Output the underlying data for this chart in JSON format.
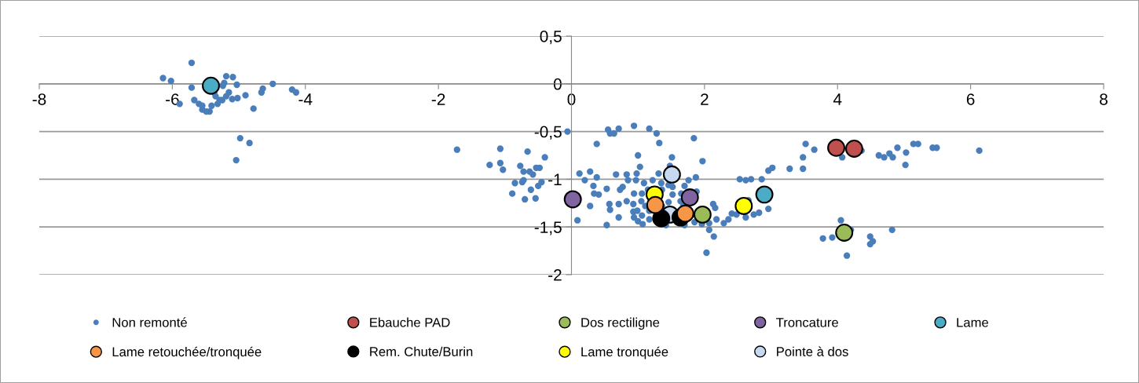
{
  "chart_data": {
    "type": "scatter",
    "xlim": [
      -8,
      8
    ],
    "ylim": [
      -2,
      0.5
    ],
    "xticks": [
      -8,
      -6,
      -4,
      -2,
      0,
      2,
      4,
      6,
      8
    ],
    "yticks": [
      {
        "value": 0.5,
        "label": "0,5"
      },
      {
        "value": 0,
        "label": "0"
      },
      {
        "value": -0.5,
        "label": "-0,5"
      },
      {
        "value": -1,
        "label": "-1"
      },
      {
        "value": -1.5,
        "label": "-1,5"
      },
      {
        "value": -2,
        "label": "-2"
      }
    ],
    "grid": "y",
    "legend": "bottom",
    "marker": "circle",
    "series": [
      {
        "name": "Non remonté",
        "color": "#4a7ebb",
        "x": [
          -6.14,
          -6.02,
          -5.71,
          -5.71,
          -5.89,
          -5.67,
          -5.6,
          -5.55,
          -5.55,
          -5.49,
          -5.44,
          -5.41,
          -5.32,
          -5.29,
          -5.25,
          -5.19,
          -5.15,
          -5.1,
          -5.02,
          -5.35,
          -5.37,
          -5.24,
          -5.22,
          -5.19,
          -5.09,
          -5.03,
          -4.9,
          -4.78,
          -4.66,
          -4.64,
          -4.49,
          -4.2,
          -4.14,
          -4.98,
          -4.84,
          -5.04,
          -0.06,
          -1.72,
          -1.07,
          -1.23,
          -1.07,
          -1.03,
          -0.66,
          -0.4,
          -0.77,
          -0.72,
          -0.63,
          -0.58,
          -0.53,
          -0.48,
          -0.72,
          -0.85,
          -0.74,
          -0.45,
          -0.5,
          -0.61,
          -0.89,
          -0.7,
          -0.54,
          0.09,
          0.12,
          0.28,
          0.2,
          0.33,
          0.28,
          0.34,
          0.55,
          0.58,
          0.64,
          0.71,
          0.94,
          1.17,
          1.28,
          1.32,
          1.84,
          0.38,
          1.0,
          1.51,
          1.97,
          1.03,
          0.38,
          0.67,
          0.83,
          0.98,
          1.31,
          1.48,
          1.87,
          1.76,
          0.85,
          0.97,
          1.09,
          1.22,
          1.35,
          1.46,
          1.52,
          1.7,
          0.53,
          0.77,
          0.73,
          0.41,
          0.94,
          1.06,
          1.15,
          1.36,
          1.52,
          1.65,
          1.88,
          1.64,
          0.83,
          0.93,
          1.05,
          1.11,
          1.36,
          1.46,
          1.68,
          0.57,
          0.58,
          0.71,
          0.93,
          0.99,
          1.17,
          1.53,
          2.13,
          2.16,
          0.71,
          0.94,
          1.06,
          1.0,
          1.07,
          1.17,
          1.42,
          1.7,
          1.85,
          1.96,
          2.07,
          2.07,
          0.53,
          2.14,
          2.03,
          2.18,
          2.29,
          2.36,
          2.41,
          2.48,
          2.62,
          2.74,
          2.82,
          2.66,
          2.96,
          2.53,
          2.62,
          2.7,
          2.86,
          2.96,
          3.02,
          3.52,
          3.65,
          3.48,
          3.48,
          3.28,
          4.07,
          4.05,
          3.78,
          3.92,
          4.2,
          4.14,
          4.49,
          4.53,
          4.49,
          4.82,
          4.36,
          4.62,
          4.7,
          4.78,
          4.83,
          4.9,
          5.03,
          5.02,
          5.14,
          5.21,
          5.43,
          5.49,
          6.13
        ],
        "values": [
          0.06,
          0.03,
          0.22,
          -0.04,
          -0.21,
          -0.17,
          -0.21,
          -0.23,
          -0.27,
          -0.29,
          -0.29,
          -0.23,
          -0.21,
          -0.17,
          -0.17,
          -0.13,
          -0.09,
          -0.16,
          -0.15,
          -0.13,
          -0.09,
          -0.02,
          0.01,
          0.08,
          0.07,
          -0.01,
          -0.12,
          -0.26,
          -0.09,
          -0.05,
          0.0,
          -0.06,
          -0.09,
          -0.57,
          -0.62,
          -0.8,
          -0.5,
          -0.69,
          -0.68,
          -0.85,
          -0.83,
          -0.9,
          -0.71,
          -0.77,
          -0.86,
          -0.92,
          -0.92,
          -0.95,
          -0.88,
          -0.88,
          -1.01,
          -1.04,
          -1.03,
          -1.03,
          -1.07,
          -1.11,
          -1.15,
          -1.21,
          -1.2,
          -1.43,
          -0.94,
          -0.92,
          -1.01,
          -1.07,
          -1.28,
          -1.15,
          -0.48,
          -0.52,
          -0.52,
          -0.47,
          -0.44,
          -0.47,
          -0.52,
          -0.62,
          -0.57,
          -0.63,
          -0.75,
          -0.77,
          -0.81,
          -0.87,
          -0.98,
          -0.95,
          -0.95,
          -0.94,
          -0.94,
          -0.86,
          -0.98,
          -1.01,
          -1.01,
          -1.01,
          -1.04,
          -1.01,
          -1.04,
          -1.06,
          -1.08,
          -1.07,
          -1.1,
          -1.08,
          -1.11,
          -1.16,
          -1.15,
          -1.15,
          -1.11,
          -1.11,
          -1.16,
          -1.15,
          -1.13,
          -1.23,
          -1.23,
          -1.26,
          -1.23,
          -1.28,
          -1.28,
          -1.24,
          -1.28,
          -1.26,
          -1.32,
          -1.26,
          -1.34,
          -1.33,
          -1.33,
          -1.32,
          -1.26,
          -1.3,
          -1.4,
          -1.4,
          -1.38,
          -1.44,
          -1.47,
          -1.42,
          -1.48,
          -1.48,
          -1.45,
          -1.47,
          -1.46,
          -1.53,
          -1.48,
          -1.6,
          -1.77,
          -1.42,
          -1.46,
          -1.42,
          -1.36,
          -1.37,
          -1.4,
          -1.37,
          -1.35,
          -1.22,
          -1.31,
          -1.0,
          -1.01,
          -1.0,
          -1.0,
          -0.91,
          -0.88,
          -0.63,
          -0.69,
          -0.77,
          -0.89,
          -0.89,
          -0.77,
          -1.43,
          -1.62,
          -1.61,
          -1.53,
          -1.8,
          -1.6,
          -1.65,
          -1.68,
          -1.53,
          -0.7,
          -0.75,
          -0.77,
          -0.73,
          -0.77,
          -0.67,
          -0.72,
          -0.85,
          -0.63,
          -0.63,
          -0.67,
          -0.67,
          -0.7
        ]
      },
      {
        "name": "Ebauche PAD",
        "color": "#c0504d",
        "x": [
          3.98,
          4.25
        ],
        "values": [
          -0.67,
          -0.68
        ]
      },
      {
        "name": "Dos rectiligne",
        "color": "#9bbb59",
        "x": [
          1.97,
          4.1
        ],
        "values": [
          -1.37,
          -1.56
        ]
      },
      {
        "name": "Troncature",
        "color": "#8064a2",
        "x": [
          0.02,
          1.78
        ],
        "values": [
          -1.21,
          -1.19
        ]
      },
      {
        "name": "Lame",
        "color": "#4bacc6",
        "x": [
          -5.42,
          2.9
        ],
        "values": [
          -0.02,
          -1.16
        ]
      },
      {
        "name": "Lame retouchée/tronquée",
        "color": "#f79646",
        "x": [
          1.26,
          1.71
        ],
        "values": [
          -1.27,
          -1.36
        ]
      },
      {
        "name": "Rem. Chute/Burin",
        "color": "#000000",
        "x": [
          1.35,
          1.64
        ],
        "values": [
          -1.41,
          -1.4
        ]
      },
      {
        "name": "Lame tronquée",
        "color": "#ffff00",
        "x": [
          1.25,
          2.59
        ],
        "values": [
          -1.16,
          -1.28
        ]
      },
      {
        "name": "Pointe à dos",
        "color": "#c6d9f1",
        "x": [
          1.51,
          1.48
        ],
        "values": [
          -0.95,
          -1.37
        ]
      }
    ]
  }
}
